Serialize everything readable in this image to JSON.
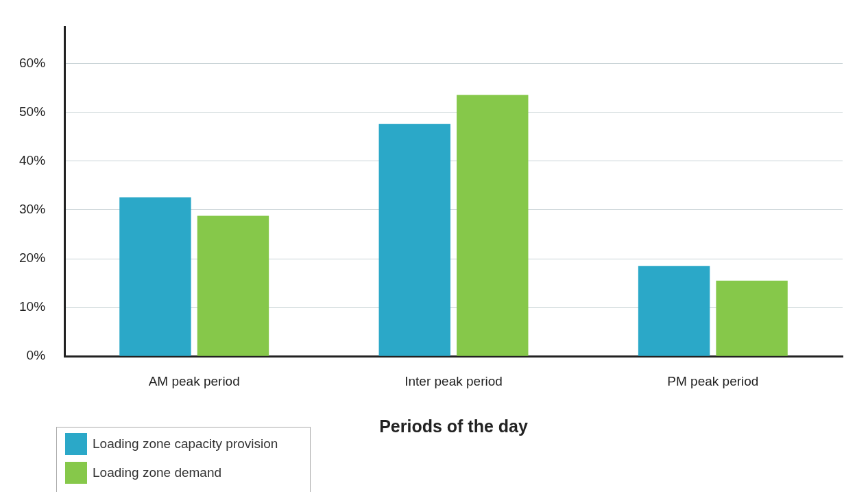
{
  "chart_data": {
    "type": "bar",
    "xlabel": "Periods of the day",
    "categories": [
      "AM peak period",
      "Inter peak period",
      "PM peak period"
    ],
    "series": [
      {
        "name": "Loading zone capacity provision",
        "color": "#2ba8c8",
        "values": [
          32.6,
          47.6,
          18.5
        ]
      },
      {
        "name": "Loading zone demand",
        "color": "#86c84a",
        "values": [
          28.8,
          53.6,
          15.5
        ]
      }
    ],
    "ylim": [
      0,
      67.5
    ],
    "yticks": [
      {
        "value": 0,
        "label": "0%"
      },
      {
        "value": 10,
        "label": "10%"
      },
      {
        "value": 20,
        "label": "20%"
      },
      {
        "value": 30,
        "label": "30%"
      },
      {
        "value": 40,
        "label": "40%"
      },
      {
        "value": 50,
        "label": "50%"
      },
      {
        "value": 60,
        "label": "60%"
      }
    ],
    "grid": "y",
    "legend": "bottom left"
  }
}
